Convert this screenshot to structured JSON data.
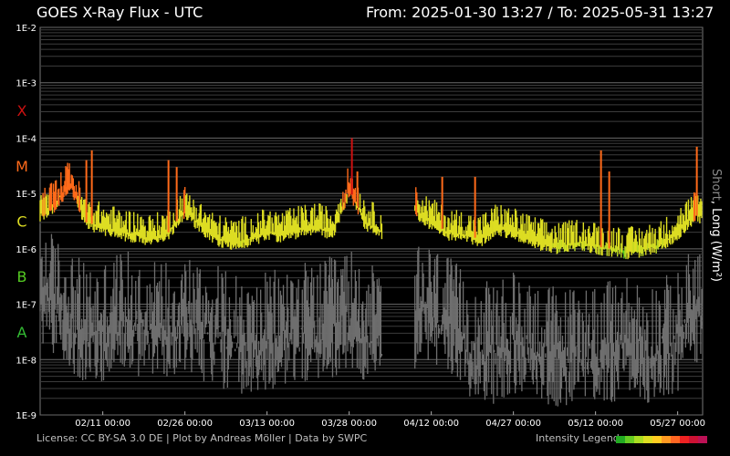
{
  "header": {
    "title": "GOES X-Ray Flux - UTC",
    "range": "From: 2025-01-30 13:27  /  To: 2025-05-31 13:27"
  },
  "footer": {
    "credits": "License: CC BY-SA 3.0 DE | Plot by Andreas Möller | Data by SWPC",
    "legend_label": "Intensity Legend"
  },
  "side_label": {
    "short": "Short",
    "separator": ", ",
    "long": "Long (W/m²)"
  },
  "colors": {
    "background": "#000000",
    "short_wavelength": "#6e6e6e",
    "gridline": "#3c3c3c",
    "class_A": "#33bb33",
    "class_B": "#55cc22",
    "class_C": "#dddd22",
    "class_M": "#ff6a1a",
    "class_X": "#cc1111",
    "legend_scale": [
      "#22aa22",
      "#66cc22",
      "#aadd22",
      "#dddd22",
      "#ffcc22",
      "#ff9922",
      "#ff6622",
      "#ee2222",
      "#cc1133",
      "#bb1155"
    ]
  },
  "chart_data": {
    "type": "line",
    "title": "GOES X-Ray Flux - UTC",
    "subtitle": "From: 2025-01-30 13:27  /  To: 2025-05-31 13:27",
    "ylabel": "Long (W/m²)",
    "ylog": true,
    "ylim": [
      1e-09,
      0.01
    ],
    "xlim": [
      "2025-01-30 13:27",
      "2025-05-31 13:27"
    ],
    "y_tick_labels": [
      "1E-2",
      "1E-3",
      "1E-4",
      "1E-5",
      "1E-6",
      "1E-7",
      "1E-8",
      "1E-9"
    ],
    "y_tick_values": [
      0.01,
      0.001,
      0.0001,
      1e-05,
      1e-06,
      1e-07,
      1e-08,
      1e-09
    ],
    "flare_classes": [
      {
        "label": "X",
        "value": 0.000316,
        "color": "#cc1111"
      },
      {
        "label": "M",
        "value": 3.16e-05,
        "color": "#ff6a1a"
      },
      {
        "label": "C",
        "value": 3.16e-06,
        "color": "#dddd22"
      },
      {
        "label": "B",
        "value": 3.16e-07,
        "color": "#55cc22"
      },
      {
        "label": "A",
        "value": 3.16e-08,
        "color": "#33bb33"
      }
    ],
    "x_ticks": [
      {
        "label": "02/11 00:00",
        "date": "2025-02-11 00:00"
      },
      {
        "label": "02/26 00:00",
        "date": "2025-02-26 00:00"
      },
      {
        "label": "03/13 00:00",
        "date": "2025-03-13 00:00"
      },
      {
        "label": "03/28 00:00",
        "date": "2025-03-28 00:00"
      },
      {
        "label": "04/12 00:00",
        "date": "2025-04-12 00:00"
      },
      {
        "label": "04/27 00:00",
        "date": "2025-04-27 00:00"
      },
      {
        "label": "05/12 00:00",
        "date": "2025-05-12 00:00"
      },
      {
        "label": "05/27 00:00",
        "date": "2025-05-27 00:00"
      }
    ],
    "grid": true,
    "series": [
      {
        "name": "Long",
        "x": [
          "2025-01-30",
          "2025-02-02",
          "2025-02-05",
          "2025-02-08",
          "2025-02-11",
          "2025-02-14",
          "2025-02-17",
          "2025-02-20",
          "2025-02-23",
          "2025-02-26",
          "2025-03-01",
          "2025-03-04",
          "2025-03-07",
          "2025-03-10",
          "2025-03-13",
          "2025-03-16",
          "2025-03-19",
          "2025-03-22",
          "2025-03-25",
          "2025-03-28",
          "2025-03-31",
          "2025-04-03",
          "2025-04-06",
          "2025-04-09",
          "2025-04-12",
          "2025-04-15",
          "2025-04-18",
          "2025-04-21",
          "2025-04-24",
          "2025-04-27",
          "2025-04-30",
          "2025-05-03",
          "2025-05-06",
          "2025-05-09",
          "2025-05-12",
          "2025-05-15",
          "2025-05-18",
          "2025-05-21",
          "2025-05-24",
          "2025-05-27",
          "2025-05-30"
        ],
        "y": [
          4e-06,
          6e-06,
          1.5e-05,
          3e-06,
          2.5e-06,
          2e-06,
          1.8e-06,
          1.5e-06,
          2e-06,
          5e-06,
          2.5e-06,
          1.5e-06,
          1.3e-06,
          1.5e-06,
          2e-06,
          1.8e-06,
          2.2e-06,
          2.5e-06,
          2e-06,
          1.2e-05,
          3e-06,
          2e-06,
          null,
          5e-06,
          3e-06,
          2e-06,
          1.8e-06,
          1.5e-06,
          2.5e-06,
          2e-06,
          1.5e-06,
          1.2e-06,
          1.1e-06,
          1.3e-06,
          1.1e-06,
          1e-06,
          9e-07,
          1e-06,
          1.2e-06,
          2e-06,
          4e-06
        ]
      },
      {
        "name": "Short",
        "x": [
          "2025-01-30",
          "2025-02-02",
          "2025-02-05",
          "2025-02-08",
          "2025-02-11",
          "2025-02-14",
          "2025-02-17",
          "2025-02-20",
          "2025-02-23",
          "2025-02-26",
          "2025-03-01",
          "2025-03-04",
          "2025-03-07",
          "2025-03-10",
          "2025-03-13",
          "2025-03-16",
          "2025-03-19",
          "2025-03-22",
          "2025-03-25",
          "2025-03-28",
          "2025-03-31",
          "2025-04-03",
          "2025-04-06",
          "2025-04-09",
          "2025-04-12",
          "2025-04-15",
          "2025-04-18",
          "2025-04-21",
          "2025-04-24",
          "2025-04-27",
          "2025-04-30",
          "2025-05-03",
          "2025-05-06",
          "2025-05-09",
          "2025-05-12",
          "2025-05-15",
          "2025-05-18",
          "2025-05-21",
          "2025-05-24",
          "2025-05-27",
          "2025-05-30"
        ],
        "y": [
          3e-07,
          1.5e-07,
          8e-08,
          4e-08,
          5e-08,
          8e-08,
          6e-08,
          5e-08,
          6e-08,
          8e-08,
          5e-08,
          4e-08,
          3e-08,
          2e-08,
          3e-08,
          4e-08,
          5e-08,
          4e-08,
          6e-08,
          8e-08,
          5e-08,
          3e-08,
          null,
          8e-08,
          1e-07,
          6e-08,
          3e-08,
          2e-08,
          2e-08,
          3e-08,
          2.5e-08,
          2e-08,
          1.5e-08,
          2e-08,
          2e-08,
          2e-08,
          3e-08,
          2e-08,
          2.5e-08,
          3e-08,
          1e-07
        ]
      }
    ],
    "flares": [
      {
        "date": "2025-02-01 12:00",
        "peak": 1.5e-05
      },
      {
        "date": "2025-02-04 12:00",
        "peak": 3e-05
      },
      {
        "date": "2025-02-08 00:00",
        "peak": 4e-05
      },
      {
        "date": "2025-02-09 00:00",
        "peak": 6e-05
      },
      {
        "date": "2025-02-23 00:00",
        "peak": 4e-05
      },
      {
        "date": "2025-02-24 12:00",
        "peak": 3e-05
      },
      {
        "date": "2025-03-28 12:00",
        "peak": 0.0001
      },
      {
        "date": "2025-03-29 12:00",
        "peak": 2.5e-05
      },
      {
        "date": "2025-04-14 00:00",
        "peak": 2e-05
      },
      {
        "date": "2025-04-20 00:00",
        "peak": 2e-05
      },
      {
        "date": "2025-05-13 00:00",
        "peak": 6e-05
      },
      {
        "date": "2025-05-14 12:00",
        "peak": 2.5e-05
      },
      {
        "date": "2025-05-30 12:00",
        "peak": 7e-05
      }
    ]
  }
}
